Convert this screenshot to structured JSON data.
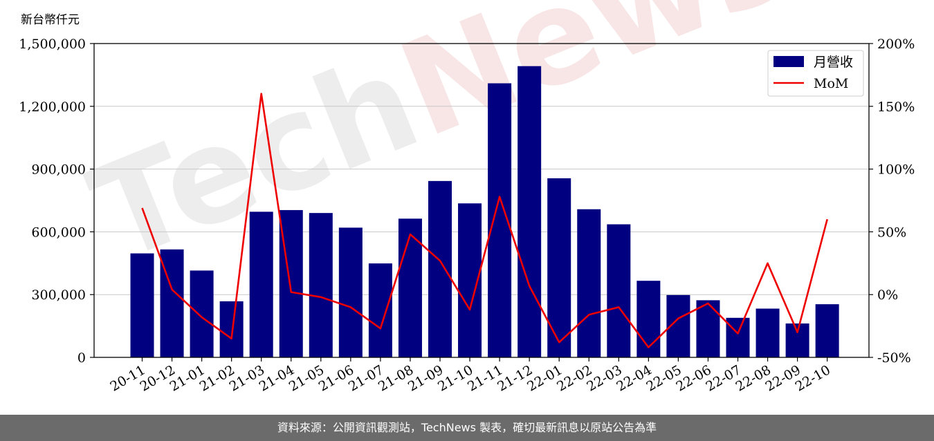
{
  "unit_label": "新台幣仟元",
  "footer_text": "資料來源：公開資訊觀測站，TechNews 製表，確切最新訊息以原站公告為準",
  "watermark": "TechNews",
  "colors": {
    "bar": "#000080",
    "line": "#ee0000",
    "watermark": "#e8e8e8",
    "watermark_accent": "#f6dede",
    "footer_bg": "#6b6b6b"
  },
  "chart_data": {
    "type": "bar",
    "categories": [
      "20-11",
      "20-12",
      "21-01",
      "21-02",
      "21-03",
      "21-04",
      "21-05",
      "21-06",
      "21-07",
      "21-08",
      "21-09",
      "21-10",
      "21-11",
      "21-12",
      "22-01",
      "22-02",
      "22-03",
      "22-04",
      "22-05",
      "22-06",
      "22-07",
      "22-08",
      "22-09",
      "22-10"
    ],
    "series": [
      {
        "name": "月營收",
        "type": "bar",
        "axis": "left",
        "values": [
          497000,
          516000,
          415000,
          268000,
          696000,
          704000,
          690000,
          620000,
          449000,
          663000,
          843000,
          736000,
          1310000,
          1392000,
          856000,
          708000,
          636000,
          366000,
          298000,
          273000,
          189000,
          233000,
          162000,
          254000
        ]
      },
      {
        "name": "MoM",
        "type": "line",
        "axis": "right",
        "values": [
          69,
          4,
          -18,
          -35,
          160,
          2,
          -2,
          -10,
          -27,
          48,
          27,
          -12,
          78,
          7,
          -38,
          -16,
          -10,
          -42,
          -19,
          -7,
          -31,
          25,
          -30,
          60
        ]
      }
    ],
    "y_left": {
      "ylim": [
        0,
        1500000
      ],
      "ticks": [
        "0",
        "300,000",
        "600,000",
        "900,000",
        "1,200,000",
        "1,500,000"
      ]
    },
    "y_right": {
      "ylim": [
        -50,
        200
      ],
      "ticks": [
        "-50%",
        "0%",
        "50%",
        "100%",
        "150%",
        "200%"
      ]
    },
    "grid": "horizontal",
    "legend_position": "top-right"
  }
}
